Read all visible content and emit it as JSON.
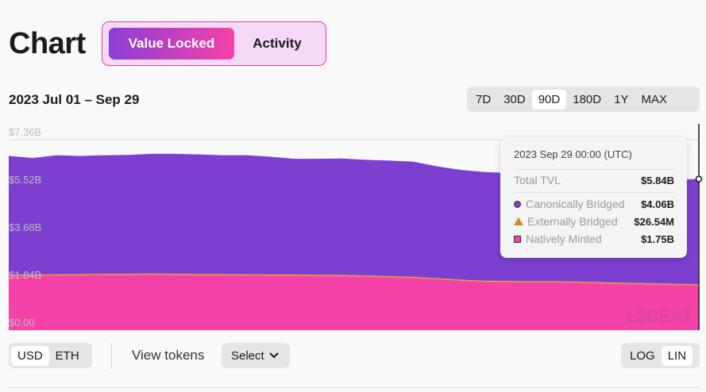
{
  "header": {
    "title": "Chart",
    "tabs": [
      {
        "label": "Value Locked",
        "active": true
      },
      {
        "label": "Activity",
        "active": false
      }
    ]
  },
  "date_range": "2023 Jul 01 – Sep 29",
  "periods": [
    {
      "label": "7D",
      "selected": false
    },
    {
      "label": "30D",
      "selected": false
    },
    {
      "label": "90D",
      "selected": true
    },
    {
      "label": "180D",
      "selected": false
    },
    {
      "label": "1Y",
      "selected": false
    },
    {
      "label": "MAX",
      "selected": false
    }
  ],
  "tooltip": {
    "date": "2023 Sep 29 00:00 (UTC)",
    "total_label": "Total TVL",
    "total_value": "$5.84B",
    "rows": [
      {
        "label": "Canonically Bridged",
        "value": "$4.06B",
        "icon": "circle-icon"
      },
      {
        "label": "Externally Bridged",
        "value": "$26.54M",
        "icon": "triangle-icon"
      },
      {
        "label": "Natively Minted",
        "value": "$1.75B",
        "icon": "square-icon"
      }
    ]
  },
  "watermark": "L2BEAT",
  "controls": {
    "currencies": [
      {
        "label": "USD",
        "selected": true
      },
      {
        "label": "ETH",
        "selected": false
      }
    ],
    "view_tokens_label": "View tokens",
    "select_label": "Select",
    "scales": [
      {
        "label": "LOG",
        "selected": false
      },
      {
        "label": "LIN",
        "selected": true
      }
    ]
  },
  "chart_data": {
    "type": "area",
    "stacked": true,
    "x_start": "2023 Jul 01",
    "x_end": "2023 Sep 29",
    "yticks": [
      "$0.00",
      "$1.84B",
      "$3.68B",
      "$5.52B",
      "$7.36B"
    ],
    "ylim": [
      0,
      7.36
    ],
    "grid": true,
    "colors": {
      "natively_minted": "#f542a8",
      "canonically_bridged": "#7c3fd0",
      "externally_bridged": "#e8a33a"
    },
    "series": [
      {
        "name": "Natively Minted",
        "values": [
          2.13,
          2.12,
          2.13,
          2.14,
          2.15,
          2.15,
          2.16,
          2.15,
          2.14,
          2.14,
          2.13,
          2.12,
          2.12,
          2.11,
          2.1,
          2.08,
          2.06,
          2.03,
          1.98,
          1.92,
          1.88,
          1.87,
          1.86,
          1.86,
          1.85,
          1.82,
          1.8,
          1.78,
          1.76,
          1.75
        ]
      },
      {
        "name": "Externally Bridged",
        "values": [
          0.03,
          0.03,
          0.03,
          0.03,
          0.03,
          0.03,
          0.03,
          0.03,
          0.03,
          0.03,
          0.03,
          0.03,
          0.03,
          0.03,
          0.03,
          0.03,
          0.03,
          0.03,
          0.03,
          0.03,
          0.03,
          0.03,
          0.03,
          0.03,
          0.03,
          0.03,
          0.03,
          0.03,
          0.03,
          0.03
        ]
      },
      {
        "name": "Canonically Bridged",
        "values": [
          4.57,
          4.5,
          4.6,
          4.56,
          4.58,
          4.59,
          4.62,
          4.63,
          4.62,
          4.59,
          4.6,
          4.55,
          4.47,
          4.48,
          4.5,
          4.47,
          4.46,
          4.45,
          4.32,
          4.24,
          4.2,
          4.17,
          4.14,
          4.14,
          4.09,
          4.05,
          4.03,
          4.04,
          4.03,
          4.06
        ]
      }
    ]
  }
}
